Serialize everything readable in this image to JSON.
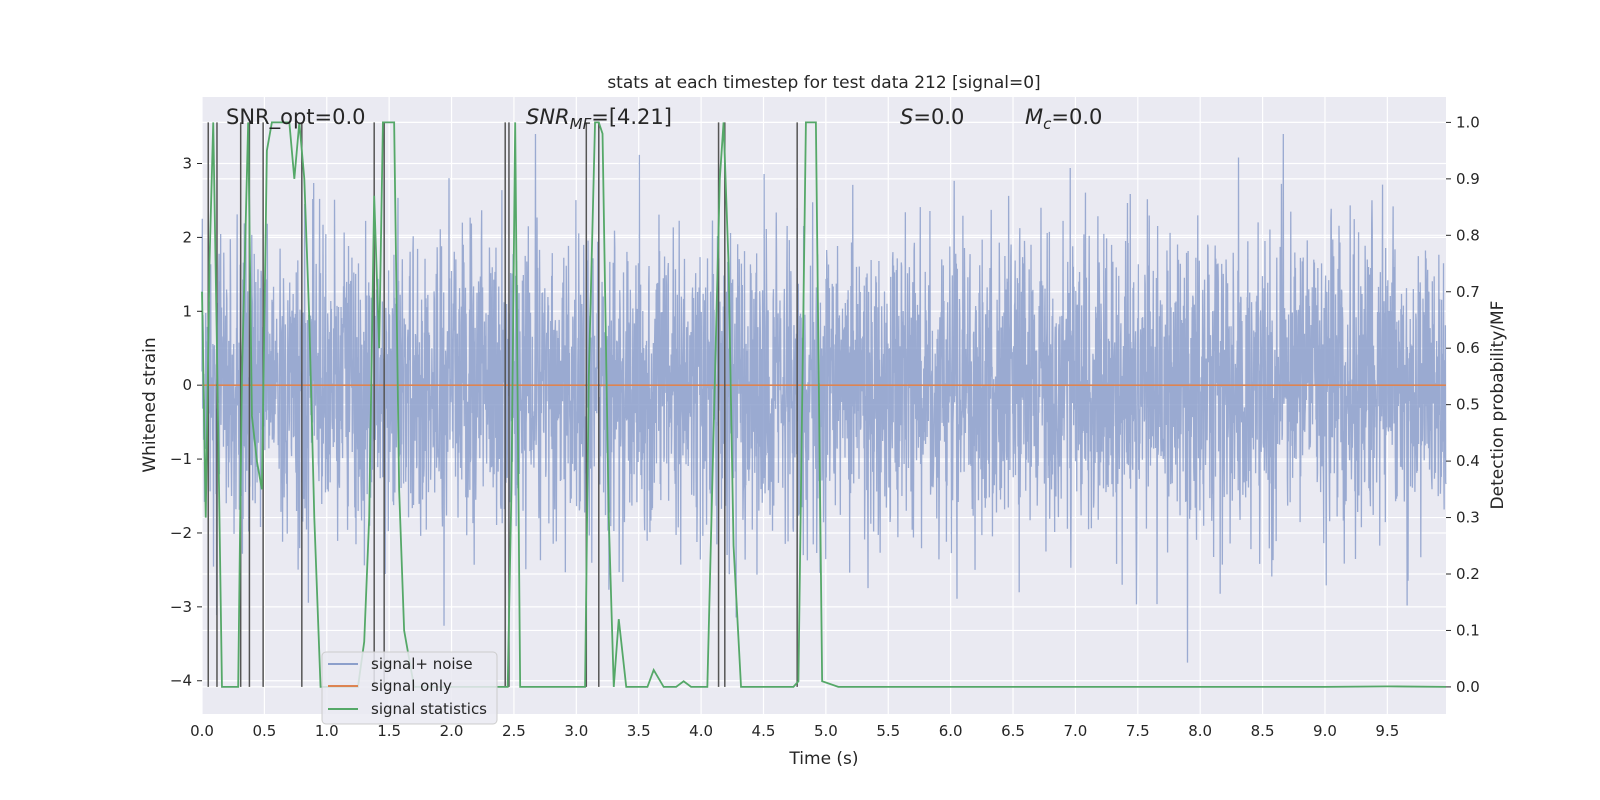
{
  "chart_data": {
    "type": "line",
    "title": "stats at each timestep for test data 212 [signal=0]",
    "xlabel": "Time (s)",
    "ylabel_left": "Whitened strain",
    "ylabel_right": "Detection probability/MF",
    "xlim": [
      0,
      9.97
    ],
    "ylim_left": [
      -4.45,
      3.9
    ],
    "ylim_right": [
      -0.048,
      1.045
    ],
    "x_ticks": [
      0.0,
      0.5,
      1.0,
      1.5,
      2.0,
      2.5,
      3.0,
      3.5,
      4.0,
      4.5,
      5.0,
      5.5,
      6.0,
      6.5,
      7.0,
      7.5,
      8.0,
      8.5,
      9.0,
      9.5
    ],
    "x_tick_labels": [
      "0.0",
      "0.5",
      "1.0",
      "1.5",
      "2.0",
      "2.5",
      "3.0",
      "3.5",
      "4.0",
      "4.5",
      "5.0",
      "5.5",
      "6.0",
      "6.5",
      "7.0",
      "7.5",
      "8.0",
      "8.5",
      "9.0",
      "9.5"
    ],
    "y_left_ticks": [
      3,
      2,
      1,
      0,
      -1,
      -2,
      -3,
      -4
    ],
    "y_left_tick_labels": [
      "3",
      "2",
      "1",
      "0",
      "−1",
      "−2",
      "−3",
      "−4"
    ],
    "y_right_ticks": [
      1.0,
      0.9,
      0.8,
      0.7,
      0.6,
      0.5,
      0.4,
      0.3,
      0.2,
      0.1,
      0.0
    ],
    "y_right_tick_labels": [
      "1.0",
      "0.9",
      "0.8",
      "0.7",
      "0.6",
      "0.5",
      "0.4",
      "0.3",
      "0.2",
      "0.1",
      "0.0"
    ],
    "grid": true,
    "legend_position": "lower-left",
    "series": [
      {
        "name": "signal+ noise",
        "color": "#8c9fcb",
        "axis": "left",
        "description": "whitened strain noise, envelope approx ±2.5 with spikes to ±3.5"
      },
      {
        "name": "signal only",
        "color": "#dd8452",
        "axis": "left",
        "x": [
          0,
          9.97
        ],
        "y": [
          0,
          0
        ]
      },
      {
        "name": "signal statistics",
        "color": "#55a868",
        "axis": "right",
        "x": [
          0.0,
          0.03,
          0.06,
          0.09,
          0.12,
          0.16,
          0.19,
          0.25,
          0.29,
          0.32,
          0.37,
          0.4,
          0.44,
          0.48,
          0.52,
          0.56,
          0.62,
          0.66,
          0.7,
          0.74,
          0.78,
          0.82,
          0.86,
          0.9,
          0.95,
          1.0,
          1.05,
          1.1,
          1.15,
          1.2,
          1.25,
          1.3,
          1.34,
          1.38,
          1.42,
          1.45,
          1.5,
          1.54,
          1.58,
          1.62,
          1.7,
          2.0,
          2.3,
          2.45,
          2.48,
          2.51,
          2.55,
          2.7,
          3.0,
          3.07,
          3.1,
          3.15,
          3.18,
          3.21,
          3.26,
          3.3,
          3.34,
          3.4,
          3.5,
          3.57,
          3.62,
          3.7,
          3.8,
          3.86,
          3.92,
          4.05,
          4.1,
          4.15,
          4.18,
          4.22,
          4.26,
          4.32,
          4.4,
          4.5,
          4.7,
          4.74,
          4.78,
          4.84,
          4.88,
          4.92,
          4.97,
          5.1,
          6.0,
          7.0,
          8.0,
          9.0,
          9.5,
          9.97
        ],
        "y": [
          0.7,
          0.3,
          0.75,
          1.0,
          0.6,
          0.0,
          0.0,
          0.0,
          0.0,
          0.55,
          1.0,
          0.48,
          0.4,
          0.35,
          0.95,
          1.0,
          1.0,
          1.0,
          1.0,
          0.9,
          1.0,
          0.9,
          0.65,
          0.3,
          0.0,
          0.0,
          0.0,
          0.0,
          0.0,
          0.0,
          0.0,
          0.08,
          0.3,
          0.87,
          0.6,
          1.0,
          1.0,
          1.0,
          0.35,
          0.1,
          0.0,
          0.0,
          0.0,
          0.0,
          0.35,
          1.0,
          0.0,
          0.0,
          0.0,
          0.0,
          0.55,
          1.0,
          1.0,
          0.98,
          0.3,
          0.0,
          0.12,
          0.0,
          0.0,
          0.0,
          0.03,
          0.0,
          0.0,
          0.01,
          0.0,
          0.0,
          0.45,
          0.9,
          1.0,
          0.75,
          0.25,
          0.0,
          0.0,
          0.0,
          0.0,
          0.0,
          0.01,
          1.0,
          1.0,
          1.0,
          0.01,
          0.0,
          0.0,
          0.0,
          0.0,
          0.0,
          0.001,
          0.0
        ]
      }
    ],
    "vertical_lines": {
      "color": "#555555",
      "x": [
        0.05,
        0.12,
        0.31,
        0.38,
        0.49,
        0.8,
        1.38,
        1.46,
        2.43,
        2.46,
        3.08,
        3.18,
        4.14,
        4.19,
        4.77
      ],
      "y_range_right": [
        0.0,
        1.0
      ]
    },
    "annotations": {
      "snr_opt": "SNR_opt=0.0",
      "snr_mf_main": "SNR",
      "snr_mf_sub": "MF",
      "snr_mf_value": "=[4.21]",
      "s_main": "S",
      "s_value": "=0.0",
      "mc_main": "M",
      "mc_sub": "c",
      "mc_value": "=0.0"
    },
    "noise_seed": 212
  }
}
